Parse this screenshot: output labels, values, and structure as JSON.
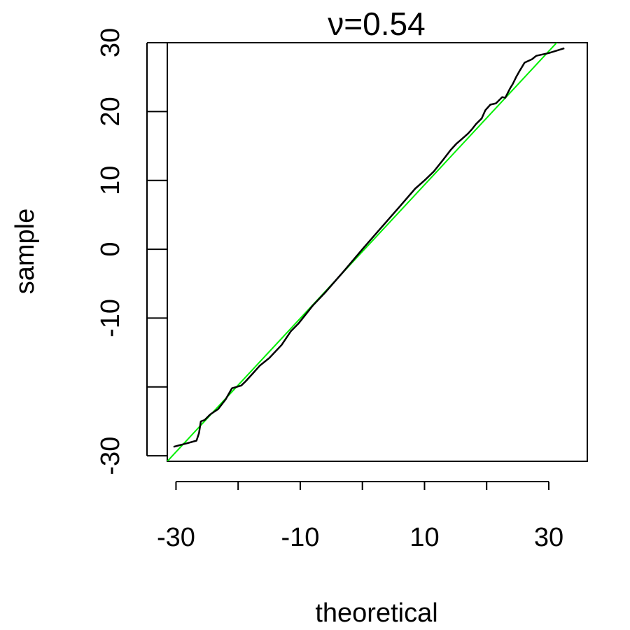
{
  "chart_data": {
    "type": "line",
    "title": "ν=0.54",
    "xlabel": "theoretical",
    "ylabel": "sample",
    "xlim": [
      -31.4,
      36.2
    ],
    "ylim": [
      -30.8,
      30.0
    ],
    "x_ticks": [
      -30,
      -20,
      -10,
      0,
      10,
      20,
      30
    ],
    "x_tick_labels": [
      "-30",
      "",
      "-10",
      "",
      "10",
      "",
      "30"
    ],
    "y_ticks": [
      -30,
      -20,
      -10,
      0,
      10,
      20,
      30
    ],
    "y_tick_labels": [
      "-30",
      "",
      "-10",
      "0",
      "10",
      "20",
      "30"
    ],
    "grid": false,
    "colors": {
      "sample_line": "#000000",
      "reference_line": "#00ee00"
    },
    "series": [
      {
        "role": "sample-quantiles",
        "color": "#000000",
        "points": [
          [
            -30.4,
            -28.7
          ],
          [
            -28.3,
            -28.2
          ],
          [
            -26.7,
            -27.8
          ],
          [
            -26.3,
            -26.7
          ],
          [
            -26.0,
            -25.0
          ],
          [
            -25.4,
            -24.8
          ],
          [
            -24.5,
            -24.0
          ],
          [
            -23.2,
            -23.2
          ],
          [
            -22.0,
            -21.8
          ],
          [
            -21.0,
            -20.2
          ],
          [
            -19.5,
            -19.8
          ],
          [
            -18.8,
            -19.2
          ],
          [
            -17.7,
            -18.1
          ],
          [
            -16.5,
            -16.9
          ],
          [
            -15.0,
            -15.8
          ],
          [
            -13.0,
            -13.9
          ],
          [
            -11.5,
            -11.9
          ],
          [
            -10.3,
            -10.8
          ],
          [
            -8.0,
            -8.2
          ],
          [
            -6.0,
            -6.3
          ],
          [
            -3.0,
            -3.2
          ],
          [
            0.0,
            0.0
          ],
          [
            3.0,
            3.1
          ],
          [
            6.0,
            6.2
          ],
          [
            8.5,
            8.8
          ],
          [
            10.0,
            10.0
          ],
          [
            11.5,
            11.3
          ],
          [
            13.0,
            13.0
          ],
          [
            14.2,
            14.4
          ],
          [
            15.1,
            15.3
          ],
          [
            16.0,
            16.0
          ],
          [
            17.0,
            16.8
          ],
          [
            17.7,
            17.5
          ],
          [
            18.3,
            18.2
          ],
          [
            19.2,
            19.0
          ],
          [
            19.8,
            20.2
          ],
          [
            20.6,
            21.0
          ],
          [
            21.5,
            21.2
          ],
          [
            22.5,
            22.1
          ],
          [
            23.0,
            22.0
          ],
          [
            23.8,
            23.4
          ],
          [
            24.2,
            24.0
          ],
          [
            24.8,
            25.1
          ],
          [
            25.3,
            25.9
          ],
          [
            26.1,
            27.1
          ],
          [
            27.3,
            27.6
          ],
          [
            28.0,
            28.1
          ],
          [
            30.0,
            28.5
          ],
          [
            32.5,
            29.2
          ]
        ]
      },
      {
        "role": "reference-line",
        "color": "#00ee00",
        "points": [
          [
            -31.4,
            -30.8
          ],
          [
            32.3,
            31.0
          ]
        ]
      }
    ]
  }
}
